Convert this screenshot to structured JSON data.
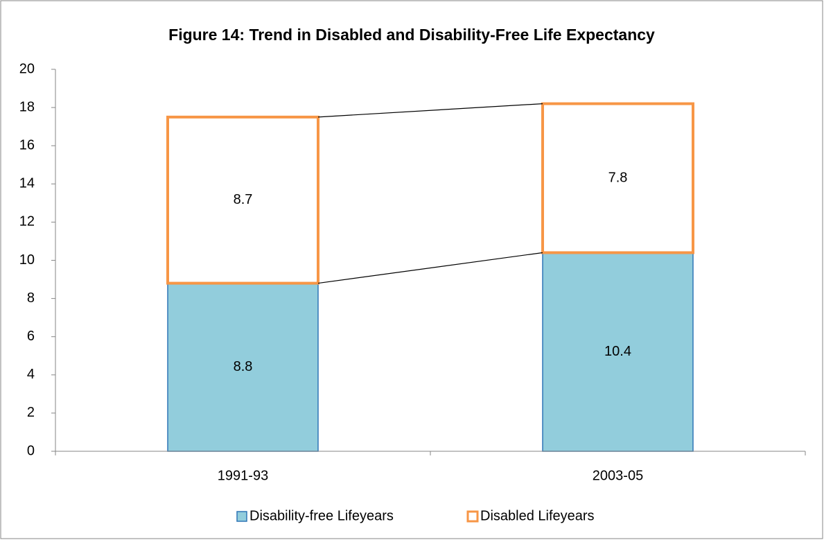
{
  "chart_data": {
    "type": "stacked_bar",
    "title": "Figure 14: Trend in Disabled and Disability-Free Life Expectancy",
    "categories": [
      "1991-93",
      "2003-05"
    ],
    "series": [
      {
        "name": "Disability-free Lifeyears",
        "color": "#92cddc",
        "edge": "#2e75b6",
        "values": [
          8.8,
          10.4
        ]
      },
      {
        "name": "Disabled Lifeyears",
        "color": "#ffffff",
        "edge": "#f79646",
        "values": [
          8.7,
          7.8
        ]
      }
    ],
    "ylim": [
      0,
      20
    ],
    "yticks": [
      0,
      2,
      4,
      6,
      8,
      10,
      12,
      14,
      16,
      18,
      20
    ],
    "series_lines": true,
    "legend": "bottom"
  }
}
